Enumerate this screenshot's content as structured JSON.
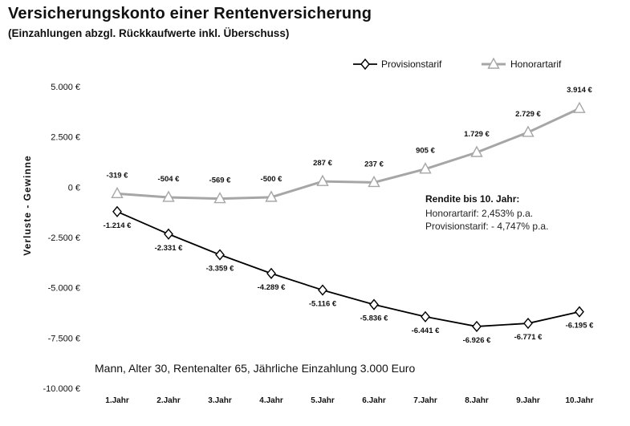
{
  "title": "Versicherungskonto einer Rentenversicherung",
  "subtitle": "(Einzahlungen abzgl. Rückkaufwerte inkl. Überschuss)",
  "annotation": {
    "heading": "Rendite bis 10. Jahr:",
    "lines": [
      "Honorartarif:  2,453% p.a.",
      "Provisionstarif: - 4,747% p.a."
    ]
  },
  "footnote": "Mann, Alter 30, Rentenalter 65, Jährliche Einzahlung 3.000 Euro",
  "colors": {
    "provision": "#000000",
    "honorar": "#a6a6a6"
  },
  "chart_data": {
    "type": "line",
    "ylabel": "Verluste - Gewinne",
    "ylim": [
      -10000,
      5000
    ],
    "yticks": [
      5000,
      2500,
      0,
      -2500,
      -5000,
      -7500,
      -10000
    ],
    "ytick_labels": [
      "5.000 €",
      "2.500 €",
      "0 €",
      "-2.500 €",
      "-5.000 €",
      "-7.500 €",
      "-10.000 €"
    ],
    "categories": [
      "1.Jahr",
      "2.Jahr",
      "3.Jahr",
      "4.Jahr",
      "5.Jahr",
      "6.Jahr",
      "7.Jahr",
      "8.Jahr",
      "9.Jahr",
      "10.Jahr"
    ],
    "legend_position": "top-right",
    "series": [
      {
        "name": "Provisionstarif",
        "marker": "diamond",
        "values": [
          -1214,
          -2331,
          -3359,
          -4289,
          -5116,
          -5836,
          -6441,
          -6926,
          -6771,
          -6195
        ],
        "labels": [
          "-1.214 €",
          "-2.331 €",
          "-3.359 €",
          "-4.289 €",
          "-5.116 €",
          "-5.836 €",
          "-6.441 €",
          "-6.926 €",
          "-6.771 €",
          "-6.195 €"
        ]
      },
      {
        "name": "Honorartarif",
        "marker": "triangle",
        "values": [
          -319,
          -504,
          -569,
          -500,
          287,
          237,
          905,
          1729,
          2729,
          3914
        ],
        "labels": [
          "-319 €",
          "-504 €",
          "-569 €",
          "-500 €",
          "287 €",
          "237 €",
          "905 €",
          "1.729 €",
          "2.729 €",
          "3.914 €"
        ]
      }
    ]
  }
}
